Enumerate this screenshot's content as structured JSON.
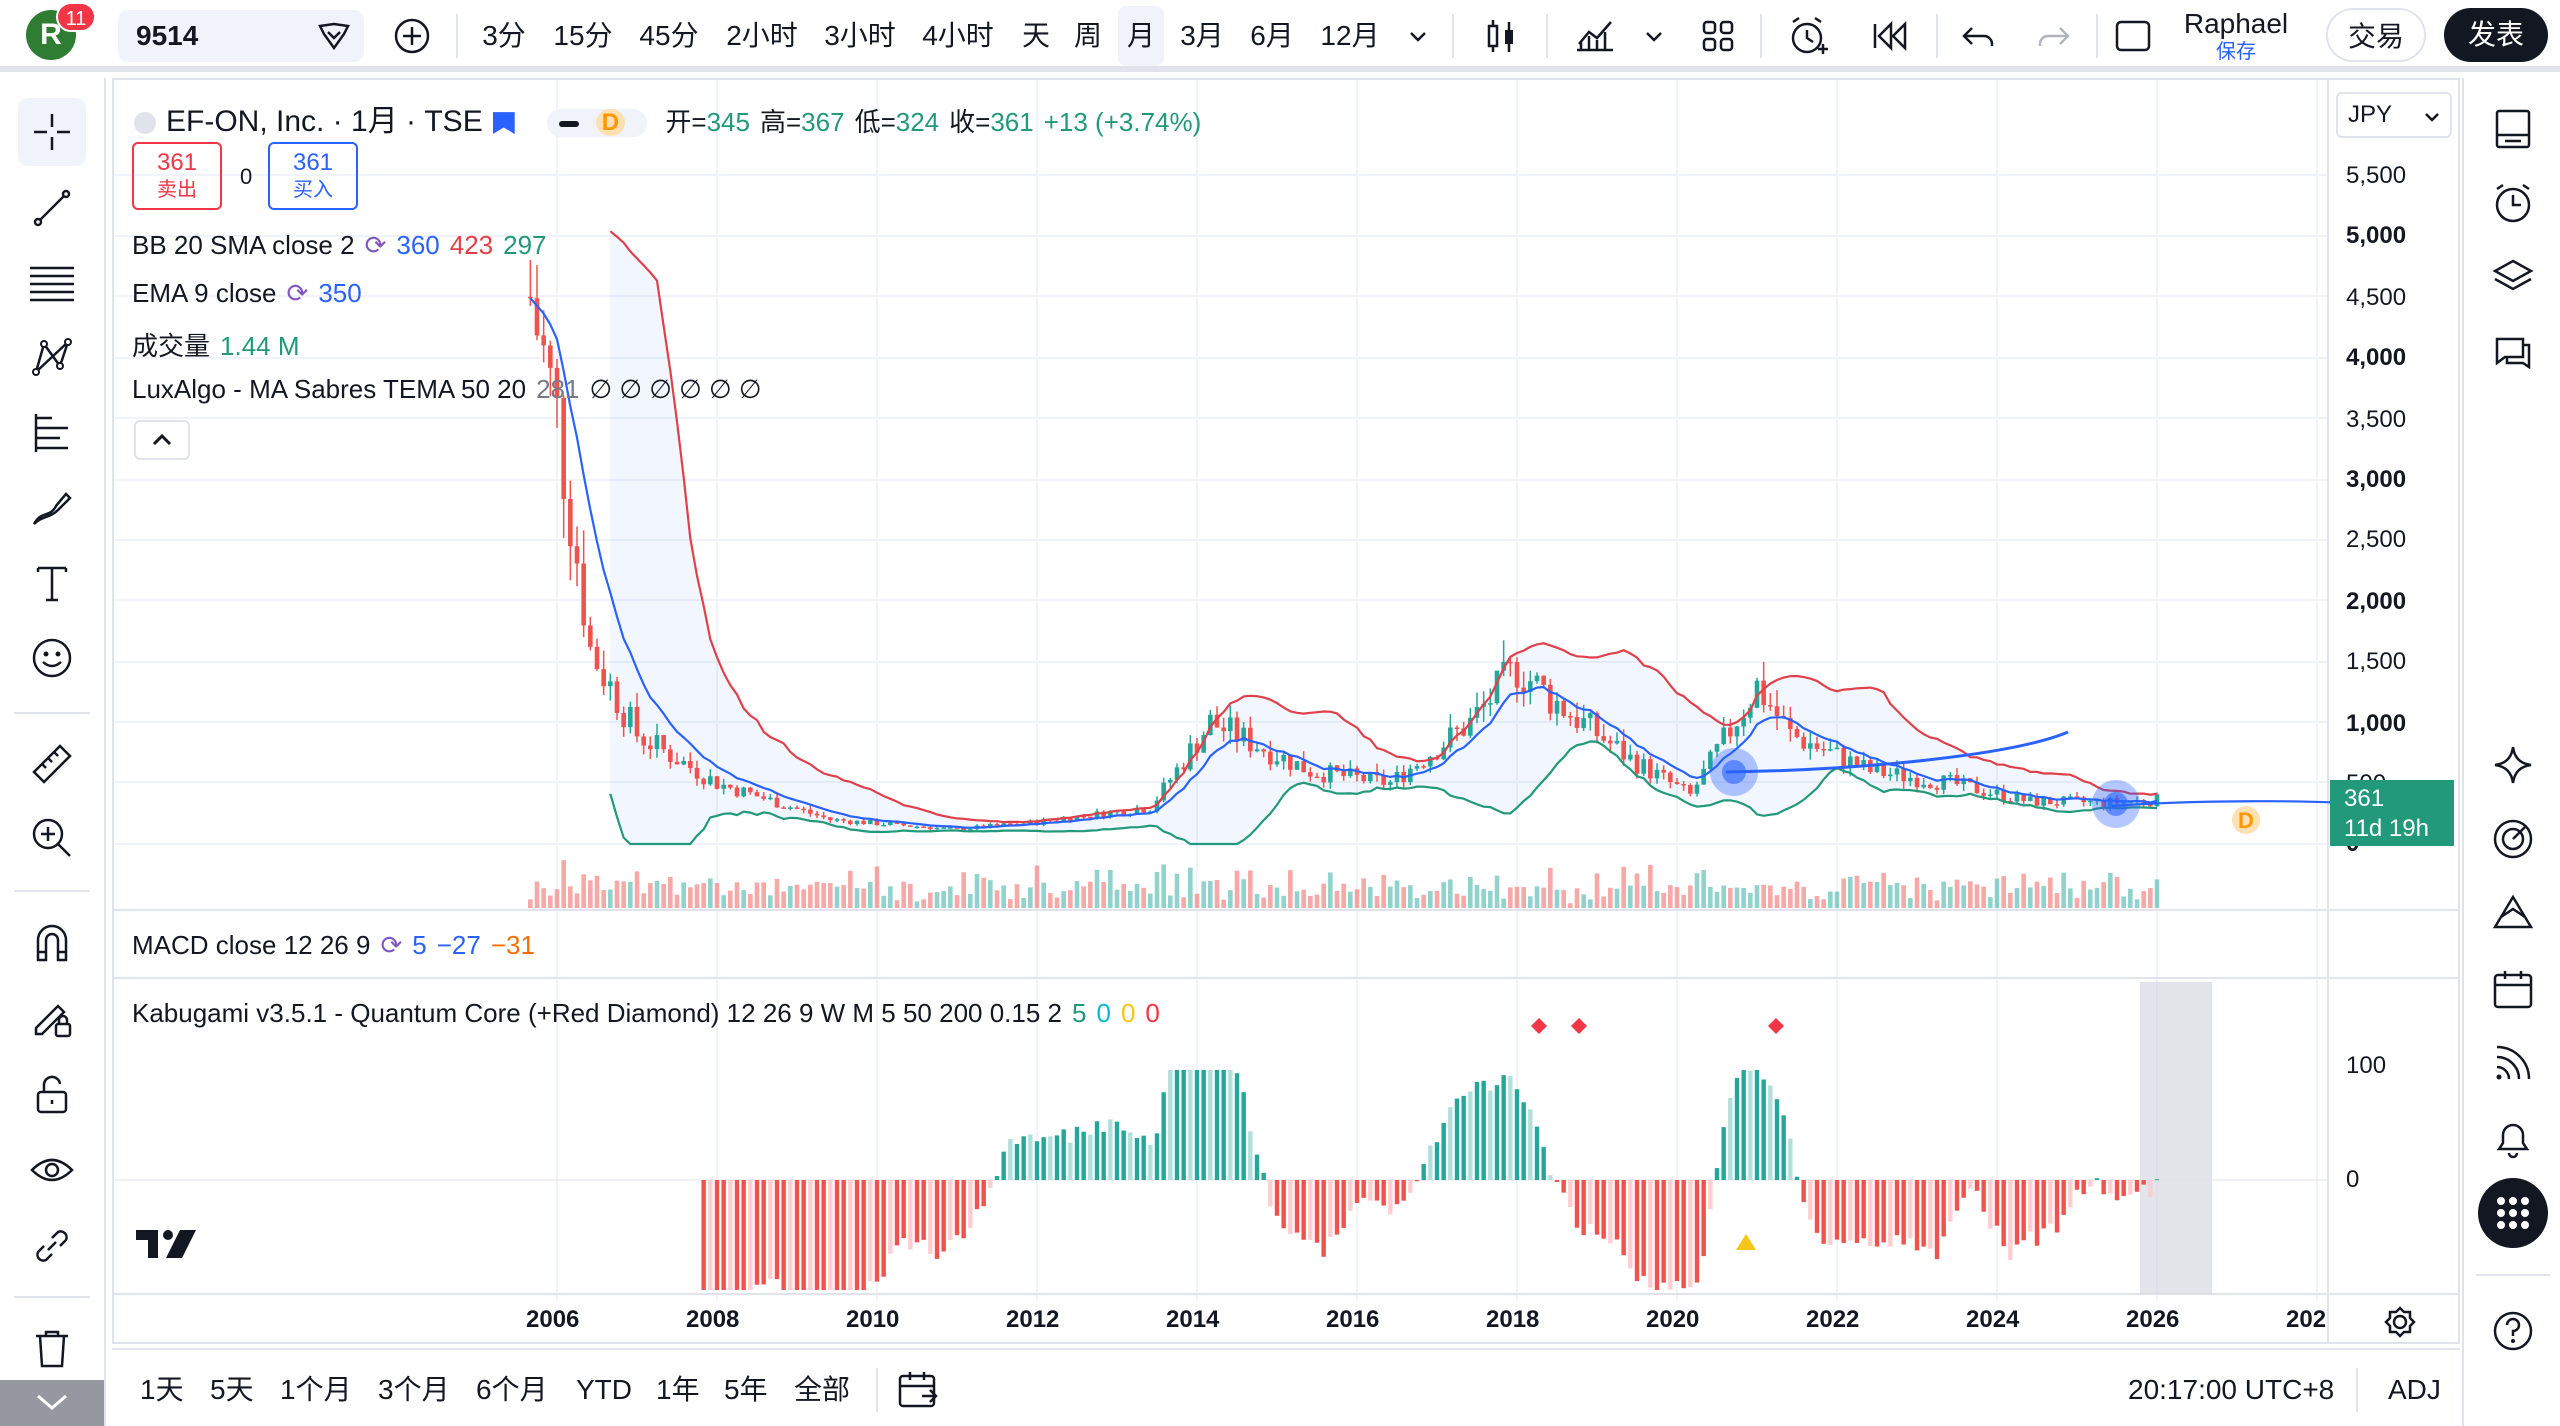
{
  "header": {
    "avatar_letter": "R",
    "notification_count": "11",
    "symbol": "9514",
    "intervals": [
      "3分",
      "15分",
      "45分",
      "2小时",
      "3小时",
      "4小时",
      "天",
      "周",
      "月",
      "3月",
      "6月",
      "12月"
    ],
    "active_interval": "月",
    "user_name": "Raphael",
    "save_label": "保存",
    "trade_label": "交易",
    "publish_label": "发表"
  },
  "instrument": {
    "title": "EF-ON, Inc. · 1月 · TSE",
    "badge_d": "D",
    "open_label": "开=",
    "open": "345",
    "high_label": "高=",
    "high": "367",
    "low_label": "低=",
    "low": "324",
    "close_label": "收=",
    "close": "361",
    "change": "+13 (+3.74%)",
    "sell_price": "361",
    "sell_label": "卖出",
    "spread": "0",
    "buy_price": "361",
    "buy_label": "买入"
  },
  "indicators": {
    "bb": {
      "name": "BB 20 SMA close 2",
      "v1": "360",
      "v2": "423",
      "v3": "297"
    },
    "ema": {
      "name": "EMA 9 close",
      "v1": "350"
    },
    "volume": {
      "name": "成交量",
      "v1": "1.44 M"
    },
    "luxalgo": {
      "name": "LuxAlgo - MA Sabres TEMA 50 20",
      "v1": "281",
      "blanks": "∅ ∅ ∅ ∅ ∅ ∅"
    },
    "macd": {
      "name": "MACD close 12 26 9",
      "v1": "5",
      "v2": "−27",
      "v3": "−31"
    },
    "kabugami": {
      "name": "Kabugami v3.5.1 - Quantum Core (+Red Diamond) 12 26 9 W M 5 50 200 0.15 2",
      "v1": "5",
      "v2": "0",
      "v3": "0",
      "v4": "0"
    }
  },
  "price_axis": {
    "currency": "JPY",
    "ticks": [
      "5,500",
      "5,000",
      "4,500",
      "4,000",
      "3,500",
      "3,000",
      "2,500",
      "2,000",
      "1,500",
      "1,000",
      "500",
      "0"
    ],
    "last_price": "361",
    "countdown": "11d 19h"
  },
  "osc_axis": {
    "ticks": [
      "100",
      "0"
    ]
  },
  "time_axis": {
    "ticks": [
      "2006",
      "2008",
      "2010",
      "2012",
      "2014",
      "2016",
      "2018",
      "2020",
      "2022",
      "2024",
      "2026",
      "202"
    ]
  },
  "bottom": {
    "ranges": [
      "1天",
      "5天",
      "1个月",
      "3个月",
      "6个月",
      "YTD",
      "1年",
      "5年",
      "全部"
    ],
    "clock": "20:17:00 UTC+8",
    "adj": "ADJ"
  },
  "colors": {
    "up": "#26a69a",
    "down": "#ef5350",
    "bb_upper": "#e0404a",
    "bb_lower": "#22997a",
    "ema": "#2962ff",
    "accent": "#2962ff"
  },
  "chart_data": {
    "type": "candlestick",
    "interval": "1M",
    "ylim": [
      0,
      5750
    ],
    "approx_closes": [
      {
        "x": "2005-09",
        "y": 4500
      },
      {
        "x": "2006-01",
        "y": 3500
      },
      {
        "x": "2006-06",
        "y": 1600
      },
      {
        "x": "2007-01",
        "y": 900
      },
      {
        "x": "2008-01",
        "y": 500
      },
      {
        "x": "2009-06",
        "y": 200
      },
      {
        "x": "2011-01",
        "y": 120
      },
      {
        "x": "2012-01",
        "y": 180
      },
      {
        "x": "2013-06",
        "y": 300
      },
      {
        "x": "2014-03",
        "y": 1000
      },
      {
        "x": "2015-06",
        "y": 600
      },
      {
        "x": "2016-06",
        "y": 500
      },
      {
        "x": "2017-06",
        "y": 1000
      },
      {
        "x": "2018-01",
        "y": 1450
      },
      {
        "x": "2018-06",
        "y": 1200
      },
      {
        "x": "2019-06",
        "y": 700
      },
      {
        "x": "2020-03",
        "y": 400
      },
      {
        "x": "2021-01",
        "y": 1300
      },
      {
        "x": "2021-06",
        "y": 900
      },
      {
        "x": "2022-06",
        "y": 600
      },
      {
        "x": "2023-06",
        "y": 500
      },
      {
        "x": "2024-06",
        "y": 350
      },
      {
        "x": "2025-06",
        "y": 340
      },
      {
        "x": "2026-01",
        "y": 361
      }
    ]
  }
}
